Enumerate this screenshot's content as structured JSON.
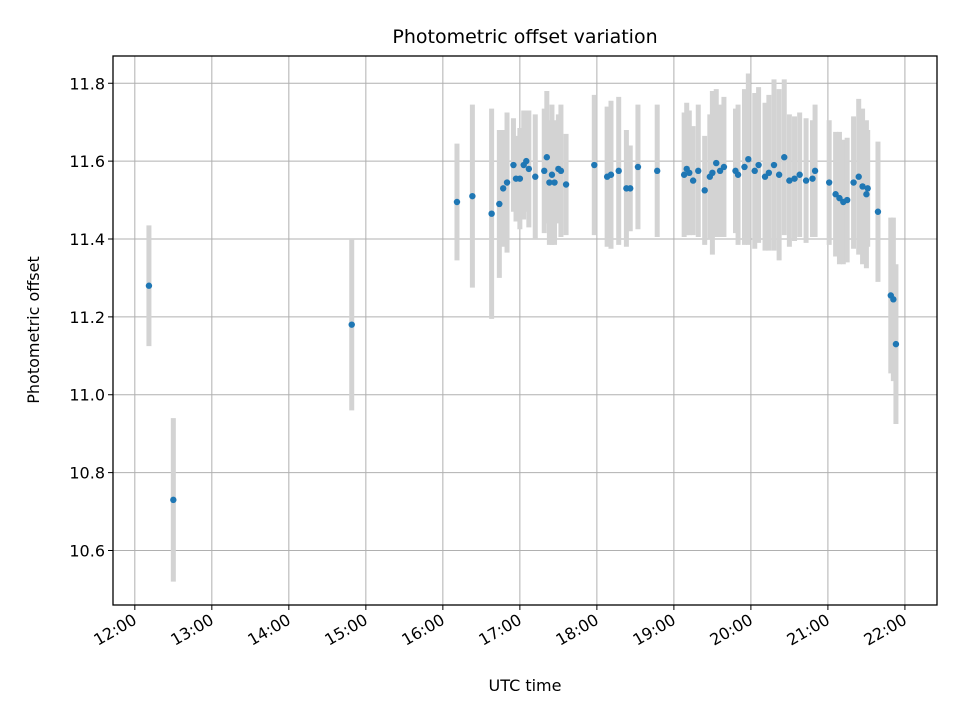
{
  "chart_data": {
    "type": "scatter",
    "title": "Photometric offset variation",
    "xlabel": "UTC time",
    "ylabel": "Photometric offset",
    "xlim": [
      "11:43",
      "22:25"
    ],
    "ylim": [
      10.46,
      11.87
    ],
    "grid": true,
    "x_ticks": [
      "12:00",
      "13:00",
      "14:00",
      "15:00",
      "16:00",
      "17:00",
      "18:00",
      "19:00",
      "20:00",
      "21:00",
      "22:00"
    ],
    "y_ticks": [
      "10.6",
      "10.8",
      "11.0",
      "11.2",
      "11.4",
      "11.6",
      "11.8"
    ],
    "colors": {
      "point": "#1f77b4",
      "errorbar": "#d3d3d3",
      "grid": "#b0b0b0"
    },
    "series": [
      {
        "x": [
          "12:11",
          "12:30",
          "14:49",
          "16:11",
          "16:23",
          "16:38",
          "16:44",
          "16:47",
          "16:50",
          "16:55",
          "16:57",
          "17:00",
          "17:03",
          "17:05",
          "17:07",
          "17:12",
          "17:19",
          "17:21",
          "17:23",
          "17:25",
          "17:27",
          "17:30",
          "17:32",
          "17:36",
          "17:58",
          "18:08",
          "18:11",
          "18:17",
          "18:23",
          "18:26",
          "18:32",
          "18:47",
          "19:08",
          "19:10",
          "19:12",
          "19:15",
          "19:19",
          "19:24",
          "19:28",
          "19:30",
          "19:33",
          "19:36",
          "19:39",
          "19:48",
          "19:50",
          "19:55",
          "19:58",
          "20:03",
          "20:06",
          "20:11",
          "20:14",
          "20:18",
          "20:22",
          "20:26",
          "20:30",
          "20:34",
          "20:38",
          "20:43",
          "20:48",
          "20:50",
          "21:01",
          "21:06",
          "21:09",
          "21:12",
          "21:15",
          "21:20",
          "21:24",
          "21:27",
          "21:30",
          "21:31",
          "21:39",
          "21:49",
          "21:51",
          "21:53"
        ],
        "y": [
          11.28,
          10.73,
          11.18,
          11.495,
          11.51,
          11.465,
          11.49,
          11.53,
          11.545,
          11.59,
          11.555,
          11.555,
          11.59,
          11.6,
          11.58,
          11.56,
          11.575,
          11.61,
          11.545,
          11.565,
          11.545,
          11.58,
          11.575,
          11.54,
          11.59,
          11.56,
          11.565,
          11.575,
          11.53,
          11.53,
          11.585,
          11.575,
          11.565,
          11.58,
          11.57,
          11.55,
          11.575,
          11.525,
          11.56,
          11.57,
          11.595,
          11.575,
          11.585,
          11.575,
          11.565,
          11.585,
          11.605,
          11.575,
          11.59,
          11.56,
          11.57,
          11.59,
          11.565,
          11.61,
          11.55,
          11.555,
          11.565,
          11.55,
          11.555,
          11.575,
          11.545,
          11.515,
          11.505,
          11.495,
          11.5,
          11.545,
          11.56,
          11.535,
          11.515,
          11.53,
          11.47,
          11.255,
          11.245,
          11.13
        ],
        "yerr": [
          0.155,
          0.21,
          0.22,
          0.15,
          0.235,
          0.27,
          0.19,
          0.15,
          0.18,
          0.12,
          0.11,
          0.13,
          0.14,
          0.13,
          0.15,
          0.16,
          0.16,
          0.17,
          0.16,
          0.18,
          0.16,
          0.14,
          0.17,
          0.13,
          0.18,
          0.18,
          0.19,
          0.19,
          0.15,
          0.11,
          0.16,
          0.17,
          0.16,
          0.17,
          0.16,
          0.14,
          0.17,
          0.14,
          0.16,
          0.21,
          0.19,
          0.17,
          0.18,
          0.16,
          0.18,
          0.2,
          0.22,
          0.2,
          0.2,
          0.19,
          0.2,
          0.22,
          0.22,
          0.2,
          0.17,
          0.16,
          0.16,
          0.16,
          0.15,
          0.17,
          0.16,
          0.16,
          0.17,
          0.16,
          0.16,
          0.17,
          0.2,
          0.2,
          0.19,
          0.15,
          0.18,
          0.2,
          0.21,
          0.205
        ]
      }
    ]
  }
}
